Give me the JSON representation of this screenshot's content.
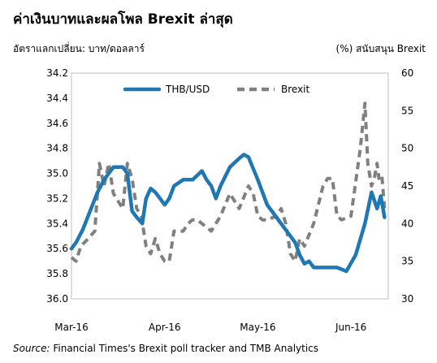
{
  "header": {
    "title": "ค่าเงินบาทและผลโพล Brexit ล่าสุด",
    "left_axis_caption": "อัตราแลกเปลี่ยน: บาท/ดอลลาร์",
    "right_axis_caption": "(%) สนับสนุน Brexit"
  },
  "footer": {
    "source_label": "Source:",
    "source_text": " Financial Times's Brexit poll tracker and TMB Analytics"
  },
  "chart_data": {
    "type": "line",
    "title": "ค่าเงินบาทและผลโพล Brexit ล่าสุด",
    "x_ticks": [
      "Mar-16",
      "Apr-16",
      "May-16",
      "Jun-16"
    ],
    "x_domain": [
      0,
      3.4
    ],
    "y_left": {
      "label": "อัตราแลกเปลี่ยน: บาท/ดอลลาร์",
      "range": [
        34.2,
        36.0
      ],
      "inverted": true,
      "ticks": [
        "34.2",
        "34.4",
        "34.6",
        "34.8",
        "35.0",
        "35.2",
        "35.4",
        "35.6",
        "35.8",
        "36.0"
      ]
    },
    "y_right": {
      "label": "(%) สนับสนุน Brexit",
      "range": [
        30,
        60
      ],
      "ticks": [
        "60",
        "55",
        "50",
        "45",
        "40",
        "35",
        "30"
      ]
    },
    "grid": false,
    "legend_position": "top",
    "series": [
      {
        "name": "THB/USD",
        "axis": "left",
        "color": "#1f77b4",
        "style": "solid",
        "x": [
          0,
          0.05,
          0.12,
          0.2,
          0.28,
          0.35,
          0.45,
          0.55,
          0.6,
          0.65,
          0.7,
          0.76,
          0.8,
          0.85,
          0.9,
          0.95,
          1.0,
          1.05,
          1.1,
          1.2,
          1.3,
          1.4,
          1.45,
          1.5,
          1.55,
          1.6,
          1.7,
          1.8,
          1.85,
          1.9,
          2.0,
          2.1,
          2.2,
          2.3,
          2.4,
          2.45,
          2.5,
          2.55,
          2.6,
          2.65,
          2.75,
          2.85,
          2.95,
          3.05,
          3.15,
          3.22,
          3.28,
          3.32,
          3.36
        ],
        "values": [
          35.6,
          35.55,
          35.45,
          35.3,
          35.15,
          35.05,
          34.95,
          34.95,
          35.0,
          35.3,
          35.35,
          35.4,
          35.2,
          35.12,
          35.15,
          35.2,
          35.25,
          35.2,
          35.1,
          35.05,
          35.05,
          34.98,
          35.05,
          35.1,
          35.2,
          35.1,
          34.95,
          34.88,
          34.85,
          34.87,
          35.05,
          35.25,
          35.35,
          35.45,
          35.55,
          35.65,
          35.72,
          35.7,
          35.75,
          35.75,
          35.75,
          35.75,
          35.78,
          35.65,
          35.4,
          35.15,
          35.28,
          35.18,
          35.35
        ]
      },
      {
        "name": "Brexit",
        "axis": "right",
        "color": "#808080",
        "style": "dashed",
        "x": [
          0,
          0.05,
          0.1,
          0.18,
          0.25,
          0.3,
          0.35,
          0.4,
          0.45,
          0.55,
          0.6,
          0.65,
          0.7,
          0.75,
          0.8,
          0.85,
          0.9,
          0.95,
          1.0,
          1.05,
          1.1,
          1.15,
          1.2,
          1.25,
          1.3,
          1.35,
          1.4,
          1.5,
          1.6,
          1.7,
          1.8,
          1.9,
          1.95,
          2.0,
          2.05,
          2.1,
          2.2,
          2.25,
          2.3,
          2.35,
          2.4,
          2.45,
          2.5,
          2.6,
          2.7,
          2.75,
          2.8,
          2.85,
          2.9,
          3.0,
          3.1,
          3.15,
          3.18,
          3.22,
          3.25,
          3.28,
          3.3,
          3.33,
          3.36
        ],
        "values": [
          35.5,
          35,
          37,
          38,
          39,
          48,
          45,
          48,
          44,
          42,
          48,
          46,
          42,
          41,
          37,
          36,
          38,
          36,
          35,
          35,
          39,
          39,
          39,
          40,
          40.5,
          40.5,
          40,
          39,
          41,
          44,
          42,
          45,
          44,
          41,
          40.5,
          40.5,
          41,
          42,
          40,
          36,
          35,
          38,
          37,
          40,
          45,
          46,
          46,
          41,
          40.5,
          41,
          50,
          56,
          48,
          45,
          46,
          48,
          46,
          46.5,
          42
        ]
      }
    ]
  }
}
